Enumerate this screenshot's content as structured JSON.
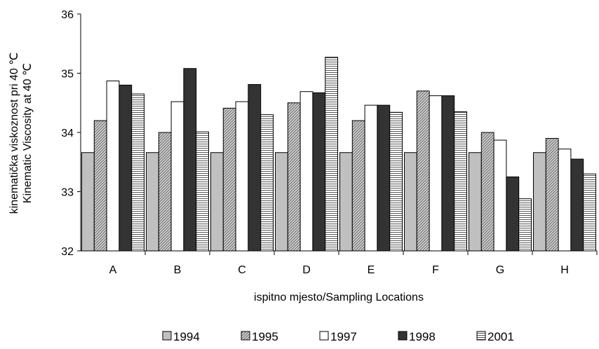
{
  "chart_data": {
    "type": "bar",
    "categories": [
      "A",
      "B",
      "C",
      "D",
      "E",
      "F",
      "G",
      "H"
    ],
    "series": [
      {
        "name": "1994",
        "values": [
          33.66,
          33.66,
          33.66,
          33.66,
          33.66,
          33.66,
          33.66,
          33.66
        ],
        "fill": "#c0c0c0",
        "pattern": "solid"
      },
      {
        "name": "1995",
        "values": [
          34.2,
          34.0,
          34.41,
          34.5,
          34.2,
          34.7,
          34.0,
          33.9
        ],
        "fill": "#c8c8c8",
        "pattern": "diagonal"
      },
      {
        "name": "1997",
        "values": [
          34.87,
          34.52,
          34.52,
          34.69,
          34.46,
          34.62,
          33.87,
          33.72
        ],
        "fill": "#ffffff",
        "pattern": "solid"
      },
      {
        "name": "1998",
        "values": [
          34.8,
          35.08,
          34.81,
          34.67,
          34.46,
          34.62,
          33.25,
          33.55
        ],
        "fill": "#333333",
        "pattern": "solid"
      },
      {
        "name": "2001",
        "values": [
          34.65,
          34.01,
          34.3,
          35.27,
          34.34,
          34.35,
          32.88,
          33.3
        ],
        "fill": "#ffffff",
        "pattern": "horizontal"
      }
    ],
    "xlabel": "ispitno mjesto/Sampling Locations",
    "ylabel_line1": "kinematička viskoznost pri 40 ℃",
    "ylabel_line2": "Kinematic Viscosity at 40 ℃",
    "ylim": [
      32,
      36
    ],
    "yticks": [
      "32",
      "33",
      "34",
      "35",
      "36"
    ],
    "grid": false,
    "legend_position": "bottom"
  }
}
